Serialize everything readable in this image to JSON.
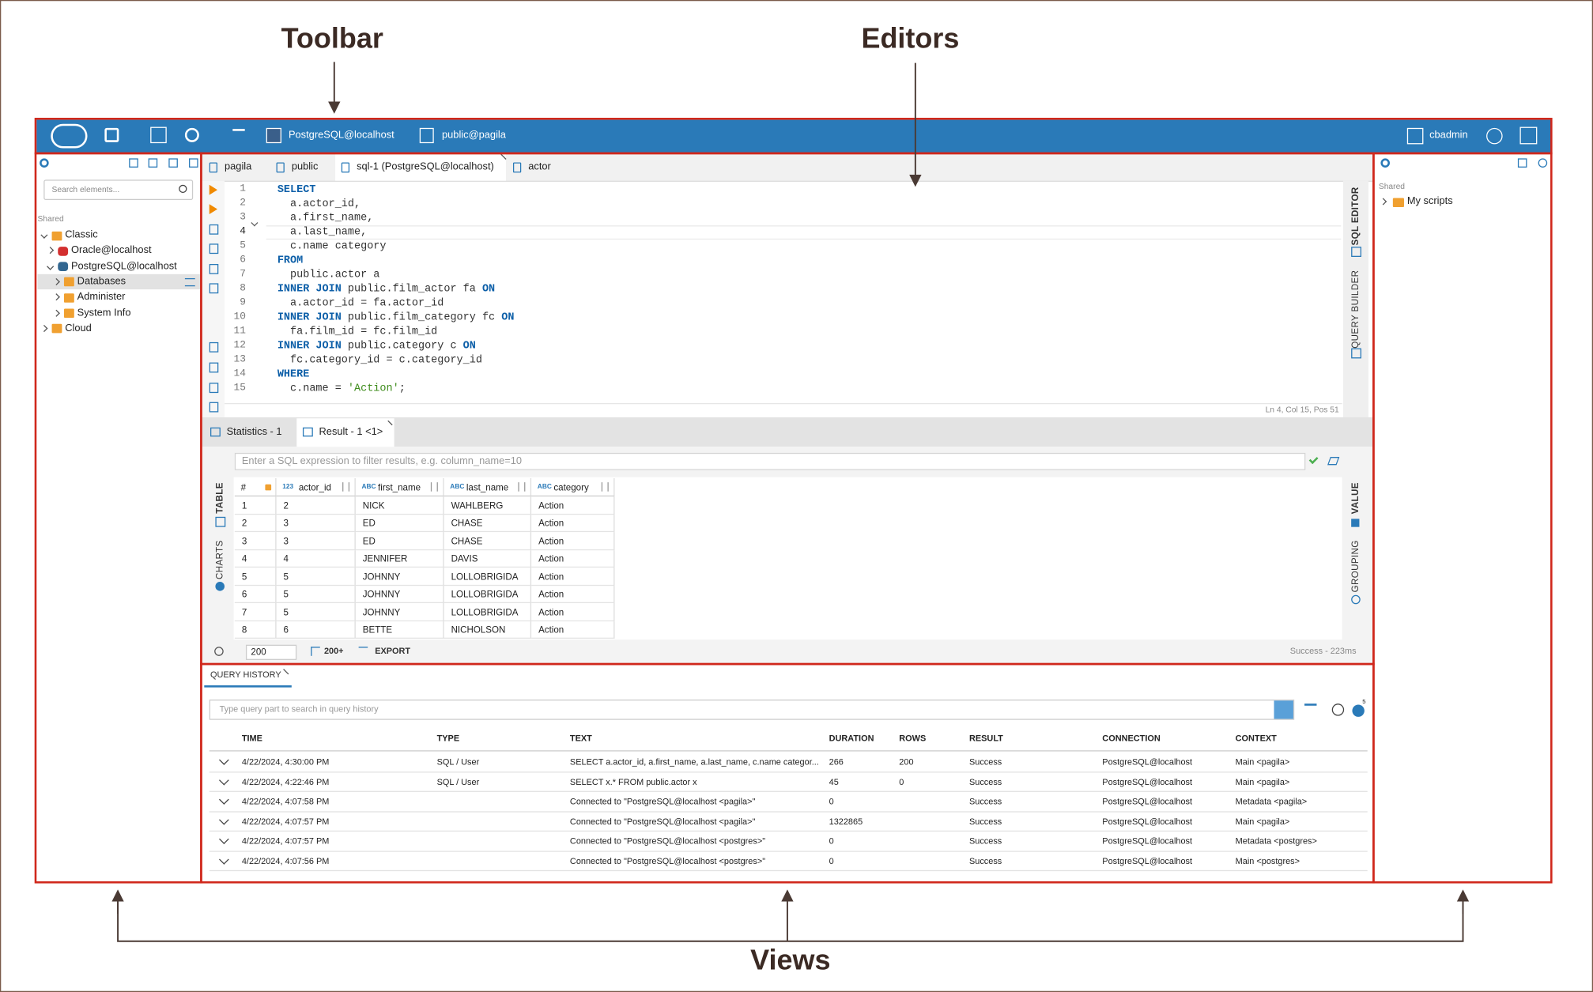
{
  "annotations": {
    "toolbar": "Toolbar",
    "editors": "Editors",
    "views": "Views"
  },
  "toolbar": {
    "connection": "PostgreSQL@localhost",
    "schema": "public@pagila",
    "user": "cbadmin"
  },
  "navigator": {
    "search_placeholder": "Search elements...",
    "section": "Shared",
    "tree": [
      {
        "label": "Classic",
        "color": "#f0a030",
        "expanded": true,
        "children": [
          {
            "label": "Oracle@localhost",
            "color": "#d32f2f"
          },
          {
            "label": "PostgreSQL@localhost",
            "color": "#336791",
            "expanded": true,
            "children": [
              {
                "label": "Databases",
                "color": "#f0a030",
                "selected": true
              },
              {
                "label": "Administer",
                "color": "#f0a030"
              },
              {
                "label": "System Info",
                "color": "#f0a030"
              }
            ]
          }
        ]
      },
      {
        "label": "Cloud",
        "color": "#f0a030"
      }
    ]
  },
  "editor": {
    "tabs": [
      {
        "label": "pagila"
      },
      {
        "label": "public"
      },
      {
        "label": "sql-1 (PostgreSQL@localhost)",
        "active": true
      },
      {
        "label": "actor"
      }
    ],
    "lines": [
      {
        "number": 1,
        "tokens": [
          {
            "text": "SELECT",
            "kind": "keyword"
          }
        ]
      },
      {
        "number": 2,
        "tokens": [
          {
            "text": "  a.actor_id,"
          }
        ]
      },
      {
        "number": 3,
        "tokens": [
          {
            "text": "  a.first_name,"
          }
        ]
      },
      {
        "number": 4,
        "current": true,
        "tokens": [
          {
            "text": "  a.last_name,"
          }
        ]
      },
      {
        "number": 5,
        "tokens": [
          {
            "text": "  c.name category"
          }
        ]
      },
      {
        "number": 6,
        "tokens": [
          {
            "text": "FROM",
            "kind": "keyword"
          }
        ]
      },
      {
        "number": 7,
        "tokens": [
          {
            "text": "  public.actor a"
          }
        ]
      },
      {
        "number": 8,
        "tokens": [
          {
            "text": "INNER JOIN",
            "kind": "keyword"
          },
          {
            "text": " public.film_actor fa "
          },
          {
            "text": "ON",
            "kind": "keyword"
          }
        ]
      },
      {
        "number": 9,
        "tokens": [
          {
            "text": "  a.actor_id = fa.actor_id"
          }
        ]
      },
      {
        "number": 10,
        "tokens": [
          {
            "text": "INNER JOIN",
            "kind": "keyword"
          },
          {
            "text": " public.film_category fc "
          },
          {
            "text": "ON",
            "kind": "keyword"
          }
        ]
      },
      {
        "number": 11,
        "tokens": [
          {
            "text": "  fa.film_id = fc.film_id"
          }
        ]
      },
      {
        "number": 12,
        "tokens": [
          {
            "text": "INNER JOIN",
            "kind": "keyword"
          },
          {
            "text": " public.category c "
          },
          {
            "text": "ON",
            "kind": "keyword"
          }
        ]
      },
      {
        "number": 13,
        "tokens": [
          {
            "text": "  fc.category_id = c.category_id"
          }
        ]
      },
      {
        "number": 14,
        "tokens": [
          {
            "text": "WHERE",
            "kind": "keyword"
          }
        ]
      },
      {
        "number": 15,
        "tokens": [
          {
            "text": "  c.name = "
          },
          {
            "text": "'Action'",
            "kind": "string"
          },
          {
            "text": ";"
          }
        ]
      }
    ],
    "status": "Ln 4, Col 15, Pos 51",
    "side_tabs": [
      "SQL EDITOR",
      "QUERY BUILDER"
    ]
  },
  "results": {
    "tabs": [
      {
        "label": "Statistics - 1"
      },
      {
        "label": "Result - 1 <1>",
        "active": true
      }
    ],
    "filter_placeholder": "Enter a SQL expression to filter results, e.g. column_name=10",
    "side_tabs_left": [
      "TABLE",
      "CHARTS"
    ],
    "side_tabs_right": [
      "VALUE",
      "GROUPING"
    ],
    "columns": [
      {
        "name": "#"
      },
      {
        "name": "actor_id",
        "type": "123"
      },
      {
        "name": "first_name",
        "type": "ABC"
      },
      {
        "name": "last_name",
        "type": "ABC"
      },
      {
        "name": "category",
        "type": "ABC"
      }
    ],
    "rows": [
      [
        "1",
        "2",
        "NICK",
        "WAHLBERG",
        "Action"
      ],
      [
        "2",
        "3",
        "ED",
        "CHASE",
        "Action"
      ],
      [
        "3",
        "3",
        "ED",
        "CHASE",
        "Action"
      ],
      [
        "4",
        "4",
        "JENNIFER",
        "DAVIS",
        "Action"
      ],
      [
        "5",
        "5",
        "JOHNNY",
        "LOLLOBRIGIDA",
        "Action"
      ],
      [
        "6",
        "5",
        "JOHNNY",
        "LOLLOBRIGIDA",
        "Action"
      ],
      [
        "7",
        "5",
        "JOHNNY",
        "LOLLOBRIGIDA",
        "Action"
      ],
      [
        "8",
        "6",
        "BETTE",
        "NICHOLSON",
        "Action"
      ]
    ],
    "limit": "200",
    "fetch_more": "200+",
    "export": "EXPORT",
    "status": "Success - 223ms"
  },
  "history": {
    "title": "QUERY HISTORY",
    "search_placeholder": "Type query part to search in query history",
    "notification_count": "5",
    "columns": [
      "TIME",
      "TYPE",
      "TEXT",
      "DURATION",
      "ROWS",
      "RESULT",
      "CONNECTION",
      "CONTEXT"
    ],
    "rows": [
      [
        "4/22/2024, 4:30:00 PM",
        "SQL / User",
        "SELECT a.actor_id, a.first_name, a.last_name, c.name categor...",
        "266",
        "200",
        "Success",
        "PostgreSQL@localhost",
        "Main <pagila>"
      ],
      [
        "4/22/2024, 4:22:46 PM",
        "SQL / User",
        "SELECT x.* FROM public.actor x",
        "45",
        "0",
        "Success",
        "PostgreSQL@localhost",
        "Main <pagila>"
      ],
      [
        "4/22/2024, 4:07:58 PM",
        null,
        "Connected to \"PostgreSQL@localhost <pagila>\"",
        "0",
        null,
        "Success",
        "PostgreSQL@localhost",
        "Metadata <pagila>"
      ],
      [
        "4/22/2024, 4:07:57 PM",
        null,
        "Connected to \"PostgreSQL@localhost <pagila>\"",
        "1322865",
        null,
        "Success",
        "PostgreSQL@localhost",
        "Main <pagila>"
      ],
      [
        "4/22/2024, 4:07:57 PM",
        null,
        "Connected to \"PostgreSQL@localhost <postgres>\"",
        "0",
        null,
        "Success",
        "PostgreSQL@localhost",
        "Metadata <postgres>"
      ],
      [
        "4/22/2024, 4:07:56 PM",
        null,
        "Connected to \"PostgreSQL@localhost <postgres>\"",
        "0",
        null,
        "Success",
        "PostgreSQL@localhost",
        "Main <postgres>"
      ]
    ]
  },
  "scripts": {
    "section": "Shared",
    "tree": [
      {
        "label": "My scripts"
      }
    ]
  }
}
